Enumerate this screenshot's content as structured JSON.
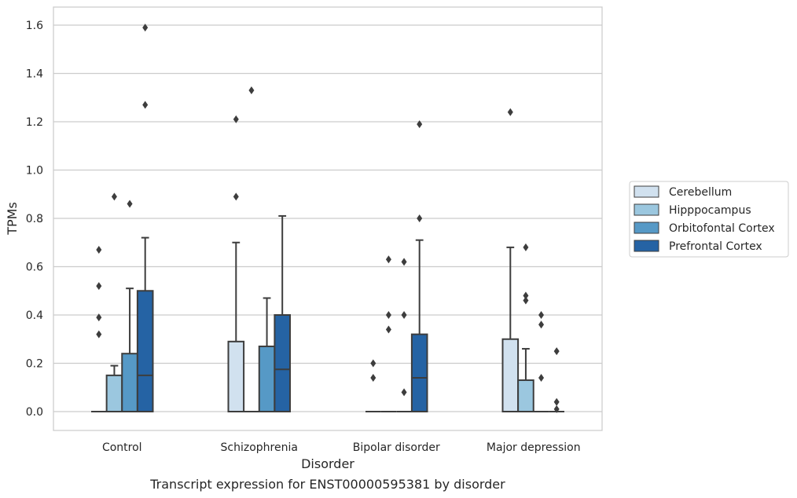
{
  "chart_data": {
    "type": "box",
    "xlabel": "Disorder",
    "ylabel": "TPMs",
    "caption": "Transcript expression for ENST00000595381 by disorder",
    "ylim": [
      -0.08,
      1.67
    ],
    "yticks": [
      0.0,
      0.2,
      0.4,
      0.6,
      0.8,
      1.0,
      1.2,
      1.4,
      1.6
    ],
    "ytick_labels": [
      "0.0",
      "0.2",
      "0.4",
      "0.6",
      "0.8",
      "1.0",
      "1.2",
      "1.4",
      "1.6"
    ],
    "grid": "horizontal",
    "legend_position": "outside-right",
    "categories": [
      "Control",
      "Schizophrenia",
      "Bipolar disorder",
      "Major depression"
    ],
    "series": [
      {
        "name": "Cerebellum",
        "color": "#d1e1ef",
        "boxes": [
          {
            "min": 0,
            "q1": 0,
            "median": 0,
            "q3": 0,
            "max": 0,
            "outliers": [
              0.32,
              0.39,
              0.52,
              0.67
            ]
          },
          {
            "min": 0,
            "q1": 0,
            "median": 0,
            "q3": 0.29,
            "max": 0.7,
            "outliers": [
              0.89,
              1.21
            ]
          },
          {
            "min": 0,
            "q1": 0,
            "median": 0,
            "q3": 0,
            "max": 0,
            "outliers": [
              0.14,
              0.2
            ]
          },
          {
            "min": 0,
            "q1": 0,
            "median": 0,
            "q3": 0.3,
            "max": 0.68,
            "outliers": [
              1.24
            ]
          }
        ]
      },
      {
        "name": "Hipppocampus",
        "color": "#9bc7df",
        "boxes": [
          {
            "min": 0,
            "q1": 0,
            "median": 0,
            "q3": 0.15,
            "max": 0.19,
            "outliers": [
              0.89
            ]
          },
          {
            "min": 0,
            "q1": 0,
            "median": 0,
            "q3": 0,
            "max": 0,
            "outliers": [
              1.33
            ]
          },
          {
            "min": 0,
            "q1": 0,
            "median": 0,
            "q3": 0,
            "max": 0,
            "outliers": [
              0.34,
              0.4,
              0.63
            ]
          },
          {
            "min": 0,
            "q1": 0,
            "median": 0,
            "q3": 0.13,
            "max": 0.26,
            "outliers": [
              0.46,
              0.48,
              0.68
            ]
          }
        ]
      },
      {
        "name": "Orbitofontal Cortex",
        "color": "#5699c6",
        "boxes": [
          {
            "min": 0,
            "q1": 0,
            "median": 0,
            "q3": 0.24,
            "max": 0.51,
            "outliers": [
              0.86
            ]
          },
          {
            "min": 0,
            "q1": 0,
            "median": 0,
            "q3": 0.27,
            "max": 0.47,
            "outliers": []
          },
          {
            "min": 0,
            "q1": 0,
            "median": 0,
            "q3": 0,
            "max": 0,
            "outliers": [
              0.08,
              0.4,
              0.62
            ]
          },
          {
            "min": 0,
            "q1": 0,
            "median": 0,
            "q3": 0,
            "max": 0,
            "outliers": [
              0.14,
              0.36,
              0.4
            ]
          }
        ]
      },
      {
        "name": "Prefrontal Cortex",
        "color": "#2563a4",
        "boxes": [
          {
            "min": 0,
            "q1": 0,
            "median": 0.15,
            "q3": 0.5,
            "max": 0.72,
            "outliers": [
              1.27,
              1.59
            ]
          },
          {
            "min": 0,
            "q1": 0,
            "median": 0.175,
            "q3": 0.4,
            "max": 0.81,
            "outliers": []
          },
          {
            "min": 0,
            "q1": 0,
            "median": 0.14,
            "q3": 0.32,
            "max": 0.71,
            "outliers": [
              0.8,
              1.19
            ]
          },
          {
            "min": 0,
            "q1": 0,
            "median": 0,
            "q3": 0,
            "max": 0,
            "outliers": [
              0.01,
              0.04,
              0.25
            ]
          }
        ]
      }
    ]
  }
}
